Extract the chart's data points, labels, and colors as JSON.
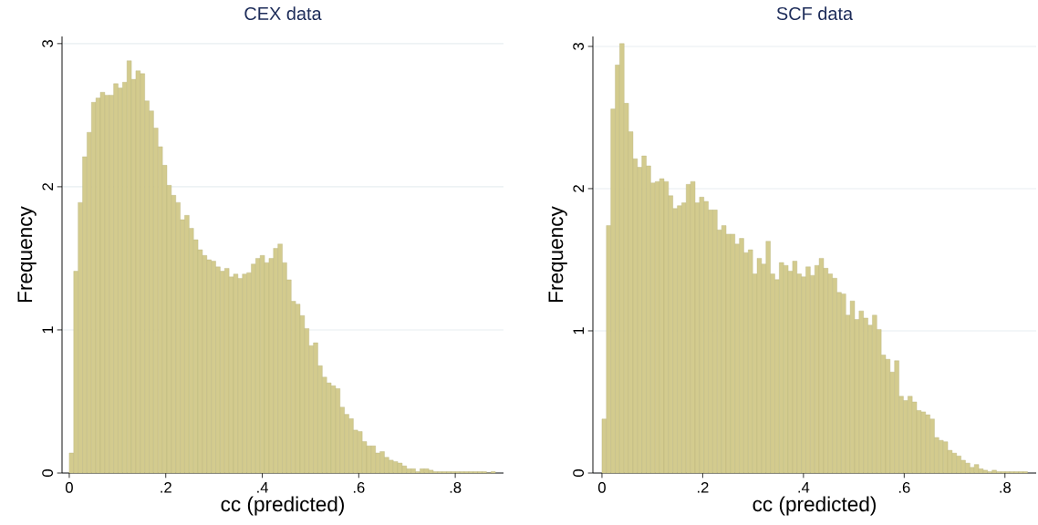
{
  "chart_data": [
    {
      "type": "histogram",
      "title": "CEX data",
      "xlabel": "cc (predicted)",
      "ylabel": "Frequency",
      "color": "#d3cb8e",
      "grid": "y",
      "xlim": [
        -0.015,
        0.9
      ],
      "ylim": [
        0,
        3.05
      ],
      "xticks": [
        0,
        {
          "value": 0.2,
          "label": ".2"
        },
        {
          "value": 0.4,
          "label": ".4"
        },
        {
          "value": 0.6,
          "label": ".6"
        },
        {
          "value": 0.8,
          "label": ".8"
        }
      ],
      "yticks": [
        0,
        1,
        2,
        3
      ],
      "bins": [
        0,
        0.0092,
        0.0184,
        0.0276,
        0.0368,
        0.046,
        0.0552,
        0.0644,
        0.0736,
        0.0828,
        0.092,
        0.1012,
        0.1104,
        0.1196,
        0.1288,
        0.138,
        0.1472,
        0.1564,
        0.1656,
        0.1748,
        0.184,
        0.1932,
        0.2024,
        0.2116,
        0.2208,
        0.23,
        0.2392,
        0.2484,
        0.2576,
        0.2668,
        0.276,
        0.2852,
        0.2944,
        0.3036,
        0.3128,
        0.322,
        0.3312,
        0.3404,
        0.3496,
        0.3588,
        0.368,
        0.3772,
        0.3864,
        0.3956,
        0.4048,
        0.414,
        0.4232,
        0.4324,
        0.4416,
        0.4508,
        0.46,
        0.4692,
        0.4784,
        0.4876,
        0.4968,
        0.506,
        0.5152,
        0.5244,
        0.5336,
        0.5428,
        0.552,
        0.5612,
        0.5704,
        0.5796,
        0.5888,
        0.598,
        0.6072,
        0.6164,
        0.6256,
        0.6348,
        0.644,
        0.6532,
        0.6624,
        0.6716,
        0.6808,
        0.69,
        0.6992,
        0.7084,
        0.7176,
        0.7268,
        0.736,
        0.7452,
        0.7544,
        0.7636,
        0.7728,
        0.782,
        0.7912,
        0.8004,
        0.8096,
        0.8188,
        0.828,
        0.8372,
        0.8464,
        0.8556,
        0.8648,
        0.874,
        0.8832
      ],
      "values": [
        0.14,
        1.41,
        1.89,
        2.21,
        2.38,
        2.59,
        2.62,
        2.66,
        2.64,
        2.64,
        2.72,
        2.69,
        2.73,
        2.88,
        2.75,
        2.81,
        2.79,
        2.6,
        2.53,
        2.41,
        2.28,
        2.15,
        2.01,
        1.94,
        1.89,
        1.77,
        1.8,
        1.71,
        1.63,
        1.56,
        1.52,
        1.49,
        1.48,
        1.44,
        1.41,
        1.43,
        1.37,
        1.39,
        1.36,
        1.39,
        1.4,
        1.46,
        1.5,
        1.52,
        1.47,
        1.5,
        1.57,
        1.6,
        1.47,
        1.35,
        1.2,
        1.18,
        1.1,
        1.01,
        0.89,
        0.91,
        0.75,
        0.67,
        0.63,
        0.61,
        0.59,
        0.46,
        0.41,
        0.38,
        0.3,
        0.29,
        0.22,
        0.19,
        0.19,
        0.14,
        0.15,
        0.11,
        0.09,
        0.08,
        0.07,
        0.05,
        0.03,
        0.03,
        0.01,
        0.03,
        0.03,
        0.02,
        0.01,
        0.01,
        0.01,
        0.01,
        0.01,
        0.01,
        0.01,
        0.01,
        0.01,
        0.01,
        0.01,
        0.01,
        0,
        0.01
      ]
    },
    {
      "type": "histogram",
      "title": "SCF data",
      "xlabel": "cc (predicted)",
      "ylabel": "Frequency",
      "color": "#d3cb8e",
      "grid": "y",
      "xlim": [
        -0.018,
        0.862
      ],
      "ylim": [
        0,
        3.07
      ],
      "xticks": [
        0,
        {
          "value": 0.2,
          "label": ".2"
        },
        {
          "value": 0.4,
          "label": ".4"
        },
        {
          "value": 0.6,
          "label": ".6"
        },
        {
          "value": 0.8,
          "label": ".8"
        }
      ],
      "yticks": [
        0,
        1,
        2,
        3
      ],
      "bins": [
        0,
        0.0088,
        0.0176,
        0.0264,
        0.0352,
        0.044,
        0.0528,
        0.0616,
        0.0704,
        0.0792,
        0.088,
        0.0968,
        0.1056,
        0.1144,
        0.1232,
        0.132,
        0.1408,
        0.1496,
        0.1584,
        0.1672,
        0.176,
        0.1848,
        0.1936,
        0.2024,
        0.2112,
        0.22,
        0.2288,
        0.2376,
        0.2464,
        0.2552,
        0.264,
        0.2728,
        0.2816,
        0.2904,
        0.2992,
        0.308,
        0.3168,
        0.3256,
        0.3344,
        0.3432,
        0.352,
        0.3608,
        0.3696,
        0.3784,
        0.3872,
        0.396,
        0.4048,
        0.4136,
        0.4224,
        0.4312,
        0.44,
        0.4488,
        0.4576,
        0.4664,
        0.4752,
        0.484,
        0.4928,
        0.5016,
        0.5104,
        0.5192,
        0.528,
        0.5368,
        0.5456,
        0.5544,
        0.5632,
        0.572,
        0.5808,
        0.5896,
        0.5984,
        0.6072,
        0.616,
        0.6248,
        0.6336,
        0.6424,
        0.6512,
        0.66,
        0.6688,
        0.6776,
        0.6864,
        0.6952,
        0.704,
        0.7128,
        0.7216,
        0.7304,
        0.7392,
        0.748,
        0.7568,
        0.7656,
        0.7744,
        0.7832,
        0.792,
        0.8008,
        0.8096,
        0.8184,
        0.8272,
        0.836,
        0.8448
      ],
      "values": [
        0.38,
        1.74,
        2.56,
        2.87,
        3.02,
        2.6,
        2.4,
        2.21,
        2.15,
        2.23,
        2.16,
        2.04,
        2.05,
        2.07,
        2.05,
        1.95,
        1.86,
        1.88,
        1.9,
        2.03,
        2.05,
        1.9,
        1.94,
        1.91,
        1.85,
        1.85,
        1.71,
        1.74,
        1.68,
        1.68,
        1.61,
        1.65,
        1.55,
        1.57,
        1.4,
        1.51,
        1.47,
        1.63,
        1.4,
        1.36,
        1.48,
        1.46,
        1.42,
        1.49,
        1.4,
        1.38,
        1.45,
        1.39,
        1.46,
        1.51,
        1.44,
        1.4,
        1.37,
        1.27,
        1.26,
        1.11,
        1.21,
        1.08,
        1.14,
        1.09,
        1.04,
        1.11,
        1.01,
        0.83,
        0.8,
        0.71,
        0.79,
        0.54,
        0.51,
        0.54,
        0.5,
        0.44,
        0.43,
        0.41,
        0.38,
        0.25,
        0.23,
        0.22,
        0.16,
        0.14,
        0.12,
        0.09,
        0.07,
        0.04,
        0.06,
        0.03,
        0.02,
        0.01,
        0.02,
        0.01,
        0.01,
        0.01,
        0.01,
        0.01,
        0.01,
        0.01
      ]
    }
  ]
}
